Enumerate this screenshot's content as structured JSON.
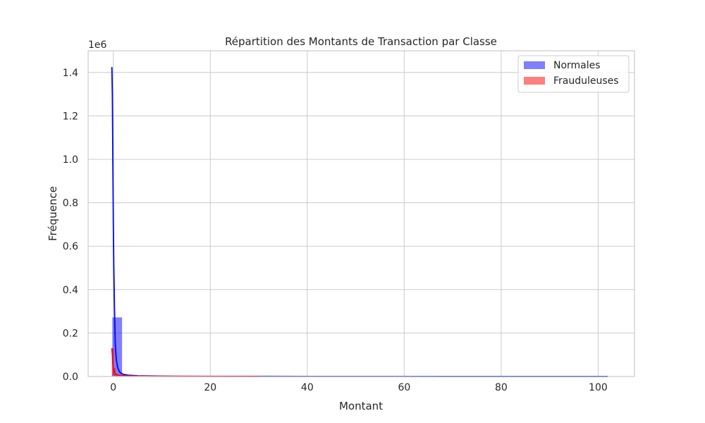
{
  "chart_data": {
    "type": "bar",
    "title": "Répartition des Montants de Transaction par Classe",
    "xlabel": "Montant",
    "ylabel": "Fréquence",
    "y_offset_text": "1e6",
    "xlim": [
      -5.2,
      107.5
    ],
    "ylim": [
      0,
      1.5
    ],
    "x_ticks": [
      0,
      20,
      40,
      60,
      80,
      100
    ],
    "x_tick_labels": [
      "0",
      "20",
      "40",
      "60",
      "80",
      "100"
    ],
    "y_ticks": [
      0,
      0.2,
      0.4,
      0.6,
      0.8,
      1.0,
      1.2,
      1.4
    ],
    "y_tick_labels": [
      "0.0",
      "0.2",
      "0.4",
      "0.6",
      "0.8",
      "1.0",
      "1.2",
      "1.4"
    ],
    "grid": true,
    "legend_position": "top-right",
    "series": [
      {
        "name": "Normales",
        "kind": "histogram",
        "color": "#0000ff",
        "bin_width": 2,
        "bins": [
          {
            "x0": -0.2,
            "x1": 1.8,
            "value": 0.272
          },
          {
            "x0": 1.8,
            "x1": 3.8,
            "value": 0.004
          },
          {
            "x0": 3.8,
            "x1": 5.8,
            "value": 0.002
          },
          {
            "x0": 5.8,
            "x1": 7.8,
            "value": 0.001
          }
        ],
        "kde": [
          [
            -0.3,
            1.425
          ],
          [
            -0.2,
            1.3
          ],
          [
            -0.1,
            1.0
          ],
          [
            0.0,
            0.7
          ],
          [
            0.1,
            0.5
          ],
          [
            0.25,
            0.3
          ],
          [
            0.4,
            0.15
          ],
          [
            0.6,
            0.08
          ],
          [
            0.9,
            0.04
          ],
          [
            1.3,
            0.02
          ],
          [
            2.0,
            0.01
          ],
          [
            3.0,
            0.006
          ],
          [
            5.0,
            0.003
          ],
          [
            10.0,
            0.0015
          ],
          [
            20.0,
            0.0008
          ],
          [
            40.0,
            0.0004
          ],
          [
            60.0,
            0.0003
          ],
          [
            80.0,
            0.0002
          ],
          [
            102.0,
            0.0002
          ]
        ]
      },
      {
        "name": "Frauduleuses",
        "kind": "histogram",
        "color": "#ff0000",
        "bin_width": 0.5,
        "bins": [
          {
            "x0": -0.3,
            "x1": 0.1,
            "value": 0.13
          },
          {
            "x0": 0.1,
            "x1": 0.5,
            "value": 0.04
          },
          {
            "x0": 0.5,
            "x1": 0.9,
            "value": 0.012
          }
        ],
        "kde": [
          [
            -0.3,
            0.13
          ],
          [
            -0.2,
            0.1
          ],
          [
            -0.1,
            0.06
          ],
          [
            0.0,
            0.035
          ],
          [
            0.2,
            0.02
          ],
          [
            0.5,
            0.01
          ],
          [
            1.0,
            0.006
          ],
          [
            2.0,
            0.004
          ],
          [
            4.0,
            0.002
          ],
          [
            8.0,
            0.0008
          ],
          [
            15.0,
            0.0003
          ],
          [
            30.0,
            0.0001
          ]
        ]
      }
    ]
  },
  "style": {
    "background": "#ffffff",
    "grid_color": "#cccccc",
    "axes_edge_color": "#cccccc",
    "text_color": "#262626"
  }
}
